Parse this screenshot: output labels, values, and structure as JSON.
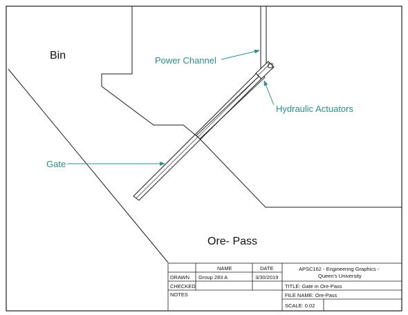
{
  "labels": {
    "bin": "Bin",
    "ore_pass": "Ore- Pass",
    "power_channel": "Power Channel",
    "hydraulic_actuators": "Hydraulic Actuators",
    "gate": "Gate"
  },
  "title_block": {
    "col_name": "NAME",
    "col_date": "DATE",
    "drawn_label": "DRAWN",
    "drawn_name": "Group 283 A",
    "drawn_date": "3/30/2019",
    "checked_label": "CHECKED",
    "notes_label": "NOTES",
    "institution_line1": "APSC162 - Engineering Graphics -",
    "institution_line2": "Queen's University",
    "title": "TITLE: Gate in Ore-Pass",
    "file_name": "FILE NAME: Ore-Pass",
    "scale": "SCALE: 0.02"
  },
  "colors": {
    "line": "#1a1a1a",
    "callout": "#2a8f86"
  }
}
